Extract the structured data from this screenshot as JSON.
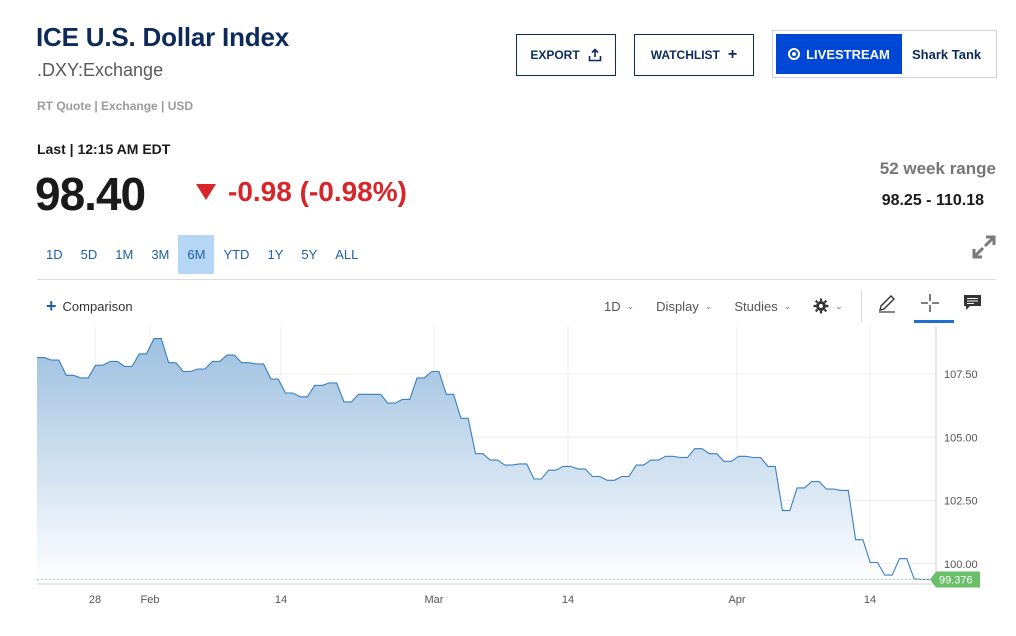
{
  "header": {
    "title": "ICE U.S. Dollar Index",
    "symbol": ".DXY:Exchange",
    "subinfo": "RT Quote | Exchange | USD"
  },
  "actions": {
    "export_label": "EXPORT",
    "watchlist_label": "WATCHLIST",
    "livestream_label": "LIVESTREAM",
    "show_label": "Shark Tank"
  },
  "quote": {
    "last_label": "Last | 12:15 AM EDT",
    "price": "98.40",
    "change": "-0.98 (-0.98%)",
    "direction": "down",
    "range_label": "52 week range",
    "range_value": "98.25 - 110.18"
  },
  "periods": [
    "1D",
    "5D",
    "1M",
    "3M",
    "6M",
    "YTD",
    "1Y",
    "5Y",
    "ALL"
  ],
  "active_period": "6M",
  "toolbar": {
    "comparison_label": "Comparison",
    "interval_label": "1D",
    "display_label": "Display",
    "studies_label": "Studies"
  },
  "icons": {
    "export": "share-icon",
    "watchlist": "plus-icon",
    "expand": "expand-icon",
    "settings": "gear-icon",
    "draw": "pencil-icon",
    "crosshair": "crosshair-icon",
    "notes": "comment-icon"
  },
  "colors": {
    "navy": "#0c2b5a",
    "down_red": "#d7252a",
    "live_blue": "#0047d6",
    "link_blue": "#1f5fa8",
    "line": "#3b7fbf",
    "fill_top": "#9dc0e0",
    "last_badge": "#6abf69"
  },
  "chart_data": {
    "type": "area",
    "x_tick_labels": [
      "28",
      "Feb",
      "14",
      "Mar",
      "14",
      "Apr",
      "14"
    ],
    "y_tick_labels": [
      "107.50",
      "105.00",
      "102.50",
      "100.00"
    ],
    "ylim": [
      99.2,
      109.4
    ],
    "last_value_label": "99.376",
    "values": [
      108.15,
      108.15,
      108.05,
      108.05,
      107.45,
      107.45,
      107.35,
      107.35,
      107.85,
      107.85,
      108.0,
      108.0,
      107.8,
      107.8,
      108.3,
      108.3,
      108.9,
      108.9,
      107.95,
      107.95,
      107.6,
      107.6,
      107.7,
      107.7,
      108.0,
      108.0,
      108.25,
      108.25,
      107.95,
      107.95,
      107.9,
      107.9,
      107.3,
      107.3,
      106.75,
      106.75,
      106.6,
      106.6,
      107.05,
      107.05,
      107.15,
      107.15,
      106.4,
      106.4,
      106.7,
      106.7,
      106.7,
      106.7,
      106.35,
      106.35,
      106.5,
      106.5,
      107.35,
      107.35,
      107.6,
      107.6,
      106.7,
      106.7,
      105.75,
      105.75,
      104.35,
      104.35,
      104.1,
      104.1,
      103.9,
      103.9,
      103.95,
      103.95,
      103.35,
      103.35,
      103.7,
      103.7,
      103.85,
      103.85,
      103.75,
      103.75,
      103.45,
      103.45,
      103.3,
      103.3,
      103.45,
      103.45,
      103.9,
      103.9,
      104.1,
      104.1,
      104.25,
      104.25,
      104.2,
      104.2,
      104.55,
      104.55,
      104.35,
      104.35,
      104.05,
      104.05,
      104.25,
      104.25,
      104.2,
      104.2,
      103.85,
      103.85,
      102.1,
      102.1,
      103.0,
      103.0,
      103.25,
      103.25,
      102.95,
      102.95,
      102.9,
      102.9,
      100.95,
      100.95,
      100.05,
      100.05,
      99.55,
      99.55,
      100.2,
      100.2,
      99.4,
      99.38,
      99.38,
      99.376
    ]
  }
}
